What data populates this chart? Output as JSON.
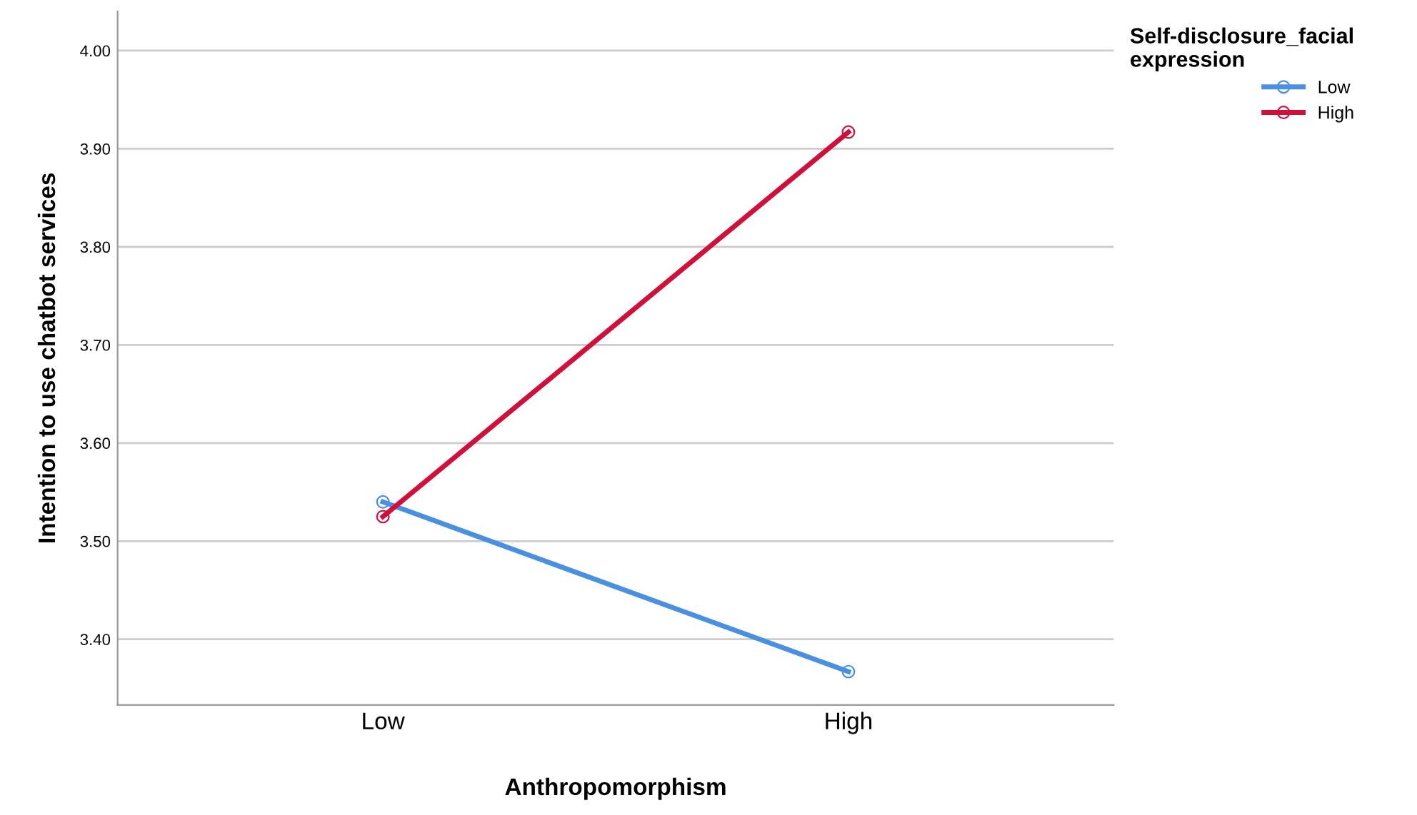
{
  "chart_data": {
    "type": "line",
    "xlabel": "Anthropomorphism",
    "ylabel": "Intention to use chatbot services",
    "legend_title": "Self-disclosure_facial expression",
    "categories": [
      "Low",
      "High"
    ],
    "series": [
      {
        "name": "Low",
        "color": "#4a90e2",
        "values": [
          3.54,
          3.367
        ]
      },
      {
        "name": "High",
        "color": "#d0103a",
        "values": [
          3.525,
          3.917
        ]
      }
    ],
    "ylim": [
      3.333,
      4.04
    ],
    "yticks": [
      {
        "value": 3.4,
        "label": "3.40"
      },
      {
        "value": 3.5,
        "label": "3.50"
      },
      {
        "value": 3.6,
        "label": "3.60"
      },
      {
        "value": 3.7,
        "label": "3.70"
      },
      {
        "value": 3.8,
        "label": "3.80"
      },
      {
        "value": 3.9,
        "label": "3.90"
      },
      {
        "value": 4.0,
        "label": "4.00"
      }
    ],
    "grid": "y",
    "legend": "right",
    "marker": "circle",
    "line_style": "solid"
  }
}
